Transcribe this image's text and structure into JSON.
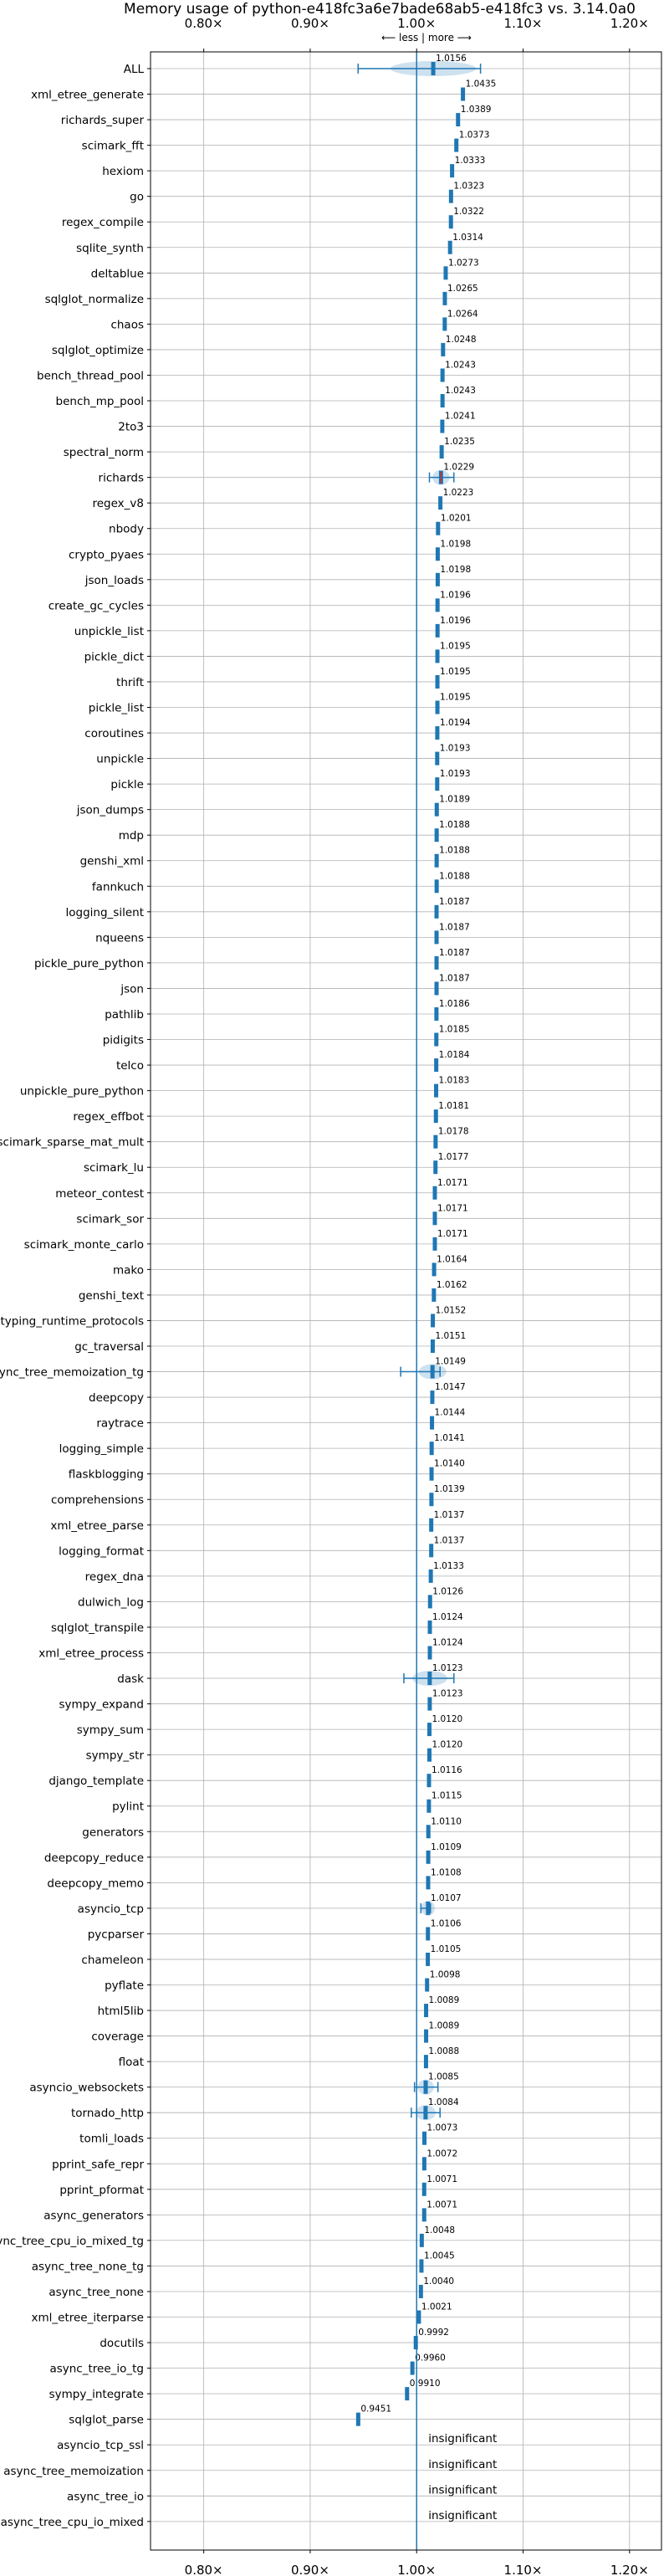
{
  "chart_data": {
    "type": "scatter",
    "title": "Memory usage of python-e418fc3a6e7bade68ab5-e418fc3 vs. 3.14.0a0",
    "direction_label": "⟵ less | more ⟶",
    "x_ticks": [
      "0.80×",
      "0.90×",
      "1.00×",
      "1.10×",
      "1.20×"
    ],
    "x_tick_values": [
      0.8,
      0.9,
      1.0,
      1.1,
      1.2
    ],
    "xlim": [
      0.75,
      1.23
    ],
    "reference_line": 1.0,
    "insignificant_label": "insignificant",
    "accent_color": "#1f77b4",
    "outlier_color": "#d62728",
    "grid": true,
    "categories": [
      "ALL",
      "xml_etree_generate",
      "richards_super",
      "scimark_fft",
      "hexiom",
      "go",
      "regex_compile",
      "sqlite_synth",
      "deltablue",
      "sqlglot_normalize",
      "chaos",
      "sqlglot_optimize",
      "bench_thread_pool",
      "bench_mp_pool",
      "2to3",
      "spectral_norm",
      "richards",
      "regex_v8",
      "nbody",
      "crypto_pyaes",
      "json_loads",
      "create_gc_cycles",
      "unpickle_list",
      "pickle_dict",
      "thrift",
      "pickle_list",
      "coroutines",
      "unpickle",
      "pickle",
      "json_dumps",
      "mdp",
      "genshi_xml",
      "fannkuch",
      "logging_silent",
      "nqueens",
      "pickle_pure_python",
      "json",
      "pathlib",
      "pidigits",
      "telco",
      "unpickle_pure_python",
      "regex_effbot",
      "scimark_sparse_mat_mult",
      "scimark_lu",
      "meteor_contest",
      "scimark_sor",
      "scimark_monte_carlo",
      "mako",
      "genshi_text",
      "typing_runtime_protocols",
      "gc_traversal",
      "async_tree_memoization_tg",
      "deepcopy",
      "raytrace",
      "logging_simple",
      "flaskblogging",
      "comprehensions",
      "xml_etree_parse",
      "logging_format",
      "regex_dna",
      "dulwich_log",
      "sqlglot_transpile",
      "xml_etree_process",
      "dask",
      "sympy_expand",
      "sympy_sum",
      "sympy_str",
      "django_template",
      "pylint",
      "generators",
      "deepcopy_reduce",
      "deepcopy_memo",
      "asyncio_tcp",
      "pycparser",
      "chameleon",
      "pyflate",
      "html5lib",
      "coverage",
      "float",
      "asyncio_websockets",
      "tornado_http",
      "tomli_loads",
      "pprint_safe_repr",
      "pprint_pformat",
      "async_generators",
      "async_tree_cpu_io_mixed_tg",
      "async_tree_none_tg",
      "async_tree_none",
      "xml_etree_iterparse",
      "docutils",
      "async_tree_io_tg",
      "sympy_integrate",
      "sqlglot_parse",
      "asyncio_tcp_ssl",
      "async_tree_memoization",
      "async_tree_io",
      "async_tree_cpu_io_mixed"
    ],
    "values": [
      1.0156,
      1.0435,
      1.0389,
      1.0373,
      1.0333,
      1.0323,
      1.0322,
      1.0314,
      1.0273,
      1.0265,
      1.0264,
      1.0248,
      1.0243,
      1.0243,
      1.0241,
      1.0235,
      1.0229,
      1.0223,
      1.0201,
      1.0198,
      1.0198,
      1.0196,
      1.0196,
      1.0195,
      1.0195,
      1.0195,
      1.0194,
      1.0193,
      1.0193,
      1.0189,
      1.0188,
      1.0188,
      1.0188,
      1.0187,
      1.0187,
      1.0187,
      1.0187,
      1.0186,
      1.0185,
      1.0184,
      1.0183,
      1.0181,
      1.0178,
      1.0177,
      1.0171,
      1.0171,
      1.0171,
      1.0164,
      1.0162,
      1.0152,
      1.0151,
      1.0149,
      1.0147,
      1.0144,
      1.0141,
      1.014,
      1.0139,
      1.0137,
      1.0137,
      1.0133,
      1.0126,
      1.0124,
      1.0124,
      1.0123,
      1.0123,
      1.012,
      1.012,
      1.0116,
      1.0115,
      1.011,
      1.0109,
      1.0108,
      1.0107,
      1.0106,
      1.0105,
      1.0098,
      1.0089,
      1.0089,
      1.0088,
      1.0085,
      1.0084,
      1.0073,
      1.0072,
      1.0071,
      1.0071,
      1.0048,
      1.0045,
      1.004,
      1.0021,
      0.9992,
      0.996,
      0.991,
      0.9451,
      null,
      null,
      null,
      null
    ],
    "value_labels": [
      "1.0156",
      "1.0435",
      "1.0389",
      "1.0373",
      "1.0333",
      "1.0323",
      "1.0322",
      "1.0314",
      "1.0273",
      "1.0265",
      "1.0264",
      "1.0248",
      "1.0243",
      "1.0243",
      "1.0241",
      "1.0235",
      "1.0229",
      "1.0223",
      "1.0201",
      "1.0198",
      "1.0198",
      "1.0196",
      "1.0196",
      "1.0195",
      "1.0195",
      "1.0195",
      "1.0194",
      "1.0193",
      "1.0193",
      "1.0189",
      "1.0188",
      "1.0188",
      "1.0188",
      "1.0187",
      "1.0187",
      "1.0187",
      "1.0187",
      "1.0186",
      "1.0185",
      "1.0184",
      "1.0183",
      "1.0181",
      "1.0178",
      "1.0177",
      "1.0171",
      "1.0171",
      "1.0171",
      "1.0164",
      "1.0162",
      "1.0152",
      "1.0151",
      "1.0149",
      "1.0147",
      "1.0144",
      "1.0141",
      "1.0140",
      "1.0139",
      "1.0137",
      "1.0137",
      "1.0133",
      "1.0126",
      "1.0124",
      "1.0124",
      "1.0123",
      "1.0123",
      "1.0120",
      "1.0120",
      "1.0116",
      "1.0115",
      "1.0110",
      "1.0109",
      "1.0108",
      "1.0107",
      "1.0106",
      "1.0105",
      "1.0098",
      "1.0089",
      "1.0089",
      "1.0088",
      "1.0085",
      "1.0084",
      "1.0073",
      "1.0072",
      "1.0071",
      "1.0071",
      "1.0048",
      "1.0045",
      "1.0040",
      "1.0021",
      "0.9992",
      "0.9960",
      "0.9910",
      "0.9451",
      "",
      "",
      "",
      ""
    ],
    "error_ranges": {
      "ALL": [
        0.945,
        1.06
      ],
      "richards": [
        1.012,
        1.035
      ],
      "async_tree_memoization_tg": [
        0.985,
        1.022
      ],
      "dask": [
        0.988,
        1.035
      ],
      "asyncio_tcp": [
        1.004,
        1.013
      ],
      "asyncio_websockets": [
        0.998,
        1.02
      ],
      "tornado_http": [
        0.995,
        1.022
      ]
    }
  }
}
